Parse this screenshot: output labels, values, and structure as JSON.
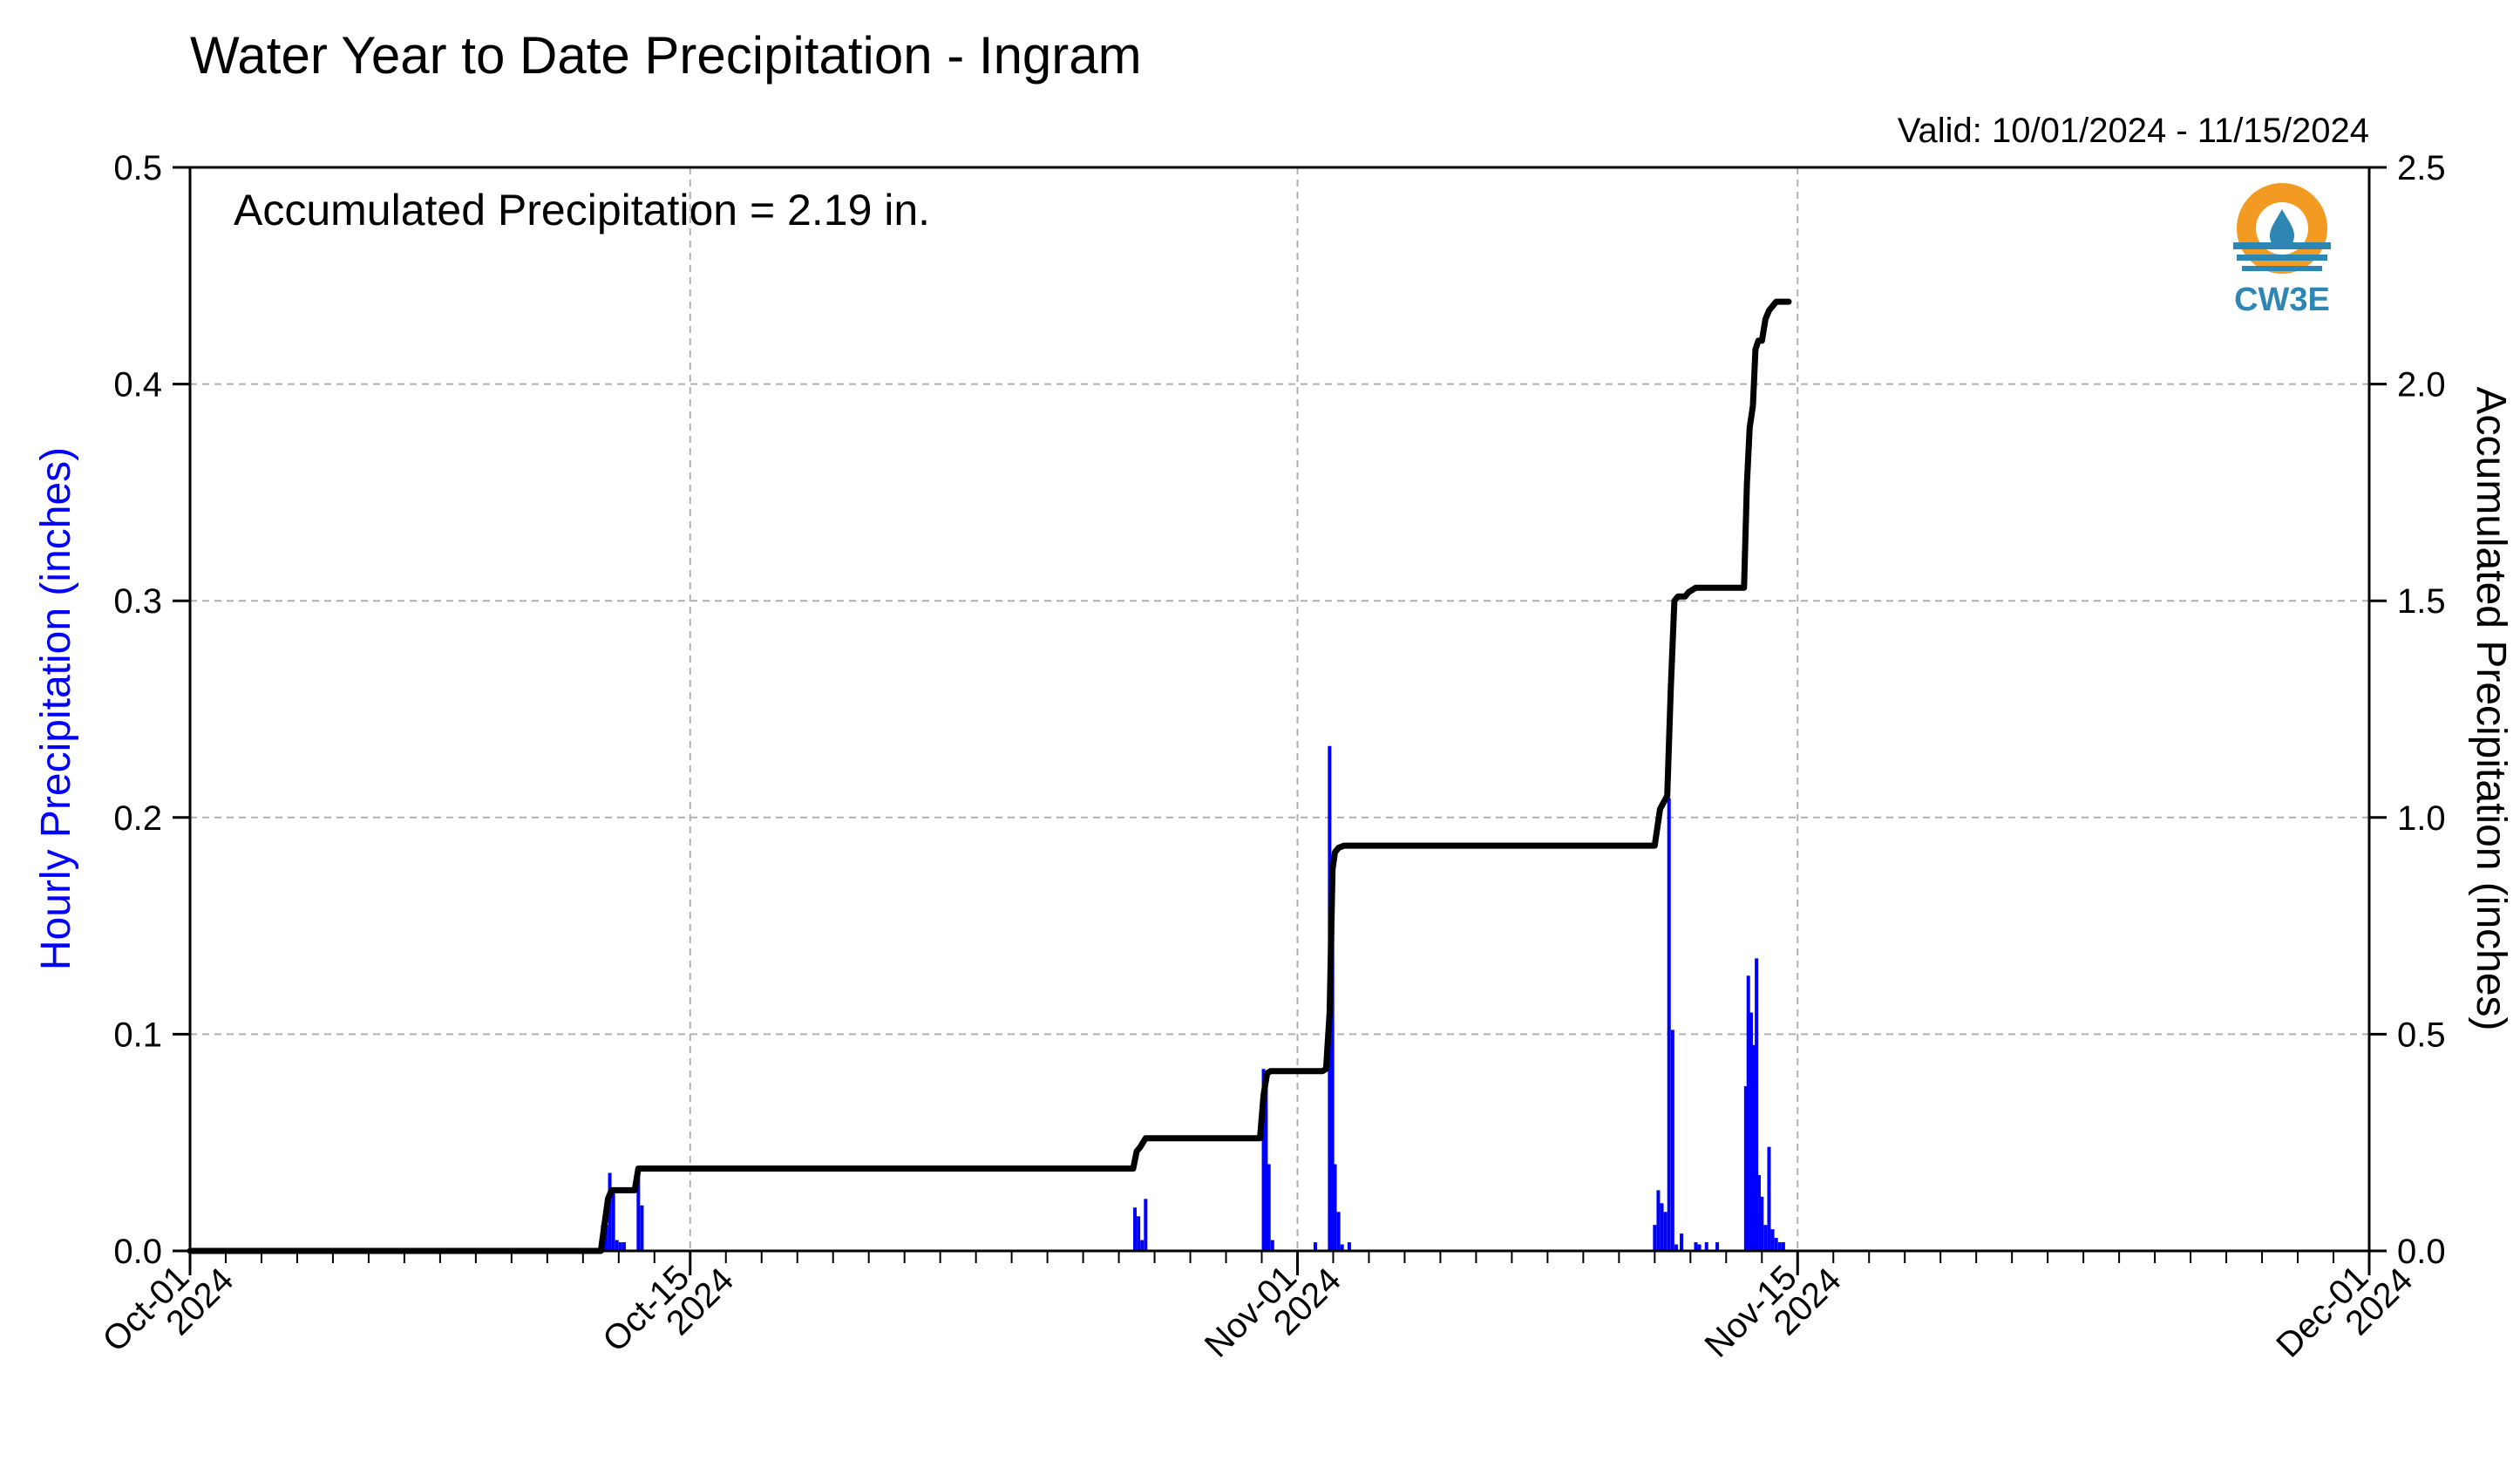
{
  "chart_data": {
    "type": "bar+line",
    "title": "Water Year to Date Precipitation - Ingram",
    "valid_text": "Valid: 10/01/2024 - 11/15/2024",
    "annotation": "Accumulated Precipitation = 2.19 in.",
    "logo_text": "CW3E",
    "y_left_label": "Hourly Precipitation (inches)",
    "y_right_label": "Accumulated Precipitation (inches)",
    "x_domain_days": [
      0,
      61
    ],
    "x_ticks": [
      {
        "day": 0,
        "label1": "Oct-01",
        "label2": "2024"
      },
      {
        "day": 14,
        "label1": "Oct-15",
        "label2": "2024"
      },
      {
        "day": 31,
        "label1": "Nov-01",
        "label2": "2024"
      },
      {
        "day": 45,
        "label1": "Nov-15",
        "label2": "2024"
      },
      {
        "day": 61,
        "label1": "Dec-01",
        "label2": "2024"
      }
    ],
    "y_left_range": [
      0,
      0.5
    ],
    "y_left_ticks": [
      "0.0",
      "0.1",
      "0.2",
      "0.3",
      "0.4",
      "0.5"
    ],
    "y_right_range": [
      0,
      2.5
    ],
    "y_right_ticks": [
      "0.0",
      "0.5",
      "1.0",
      "1.5",
      "2.0",
      "2.5"
    ],
    "grid": true,
    "colors": {
      "bars": "#0000ff",
      "line": "#000000",
      "left_label": "#0000ff",
      "grid": "#b0b0b0",
      "logo_orange": "#f39a22",
      "logo_blue": "#2e86b5"
    },
    "series": [
      {
        "name": "Hourly Precipitation",
        "type": "bar",
        "x": [
          11.55,
          11.65,
          11.75,
          11.85,
          11.95,
          12.05,
          12.15,
          12.55,
          12.65,
          26.45,
          26.55,
          26.65,
          26.75,
          30.05,
          30.12,
          30.2,
          30.3,
          31.5,
          31.9,
          31.98,
          32.05,
          32.15,
          32.25,
          32.45,
          41.0,
          41.1,
          41.2,
          41.3,
          41.4,
          41.5,
          41.6,
          41.75,
          42.15,
          42.25,
          42.45,
          42.75,
          43.55,
          43.62,
          43.7,
          43.78,
          43.85,
          43.92,
          44.0,
          44.1,
          44.2,
          44.3,
          44.4,
          44.5,
          44.6
        ],
        "values": [
          0.012,
          0.012,
          0.036,
          0.028,
          0.005,
          0.004,
          0.004,
          0.038,
          0.021,
          0.02,
          0.016,
          0.005,
          0.024,
          0.084,
          0.079,
          0.04,
          0.005,
          0.004,
          0.233,
          0.15,
          0.04,
          0.018,
          0.003,
          0.004,
          0.012,
          0.028,
          0.022,
          0.018,
          0.209,
          0.102,
          0.003,
          0.008,
          0.004,
          0.003,
          0.004,
          0.004,
          0.076,
          0.127,
          0.11,
          0.095,
          0.135,
          0.035,
          0.025,
          0.012,
          0.048,
          0.01,
          0.006,
          0.004,
          0.004
        ]
      },
      {
        "name": "Accumulated Precipitation",
        "type": "line",
        "x": [
          0,
          11.5,
          11.6,
          11.7,
          11.8,
          11.9,
          12.1,
          12.45,
          12.55,
          12.7,
          26.4,
          26.5,
          26.6,
          26.75,
          29.95,
          30.05,
          30.15,
          30.25,
          31.7,
          31.8,
          31.9,
          31.98,
          32.05,
          32.15,
          32.3,
          32.5,
          41.0,
          41.15,
          41.35,
          41.45,
          41.55,
          41.65,
          41.85,
          41.95,
          42.15,
          42.5,
          43.5,
          43.58,
          43.66,
          43.75,
          43.82,
          43.9,
          44.0,
          44.1,
          44.2,
          44.3,
          44.4,
          44.55,
          44.75
        ],
        "values": [
          0.0,
          0.0,
          0.06,
          0.12,
          0.14,
          0.14,
          0.14,
          0.14,
          0.19,
          0.19,
          0.19,
          0.23,
          0.24,
          0.26,
          0.26,
          0.36,
          0.41,
          0.415,
          0.415,
          0.42,
          0.55,
          0.88,
          0.92,
          0.93,
          0.935,
          0.935,
          0.935,
          1.02,
          1.05,
          1.3,
          1.5,
          1.51,
          1.51,
          1.52,
          1.53,
          1.53,
          1.53,
          1.77,
          1.9,
          1.95,
          2.08,
          2.1,
          2.1,
          2.15,
          2.17,
          2.18,
          2.19,
          2.19,
          2.19
        ]
      }
    ]
  }
}
